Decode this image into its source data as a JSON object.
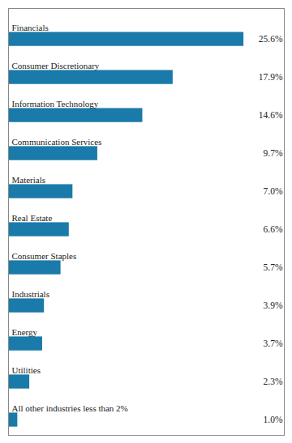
{
  "chart_data": {
    "type": "bar",
    "orientation": "horizontal",
    "categories": [
      "Financials",
      "Consumer Discretionary",
      "Information Technology",
      "Communication Services",
      "Materials",
      "Real Estate",
      "Consumer Staples",
      "Industrials",
      "Energy",
      "Utilities",
      "All other industries less than 2%"
    ],
    "values": [
      25.6,
      17.9,
      14.6,
      9.7,
      7.0,
      6.6,
      5.7,
      3.9,
      3.7,
      2.3,
      1.0
    ],
    "value_labels": [
      "25.6%",
      "17.9%",
      "14.6%",
      "9.7%",
      "7.0%",
      "6.6%",
      "5.7%",
      "3.9%",
      "3.7%",
      "2.3%",
      "1.0%"
    ],
    "color": "#1a7aaa",
    "xlim": [
      0,
      30
    ],
    "data_labels": true,
    "tick_labels": false
  }
}
